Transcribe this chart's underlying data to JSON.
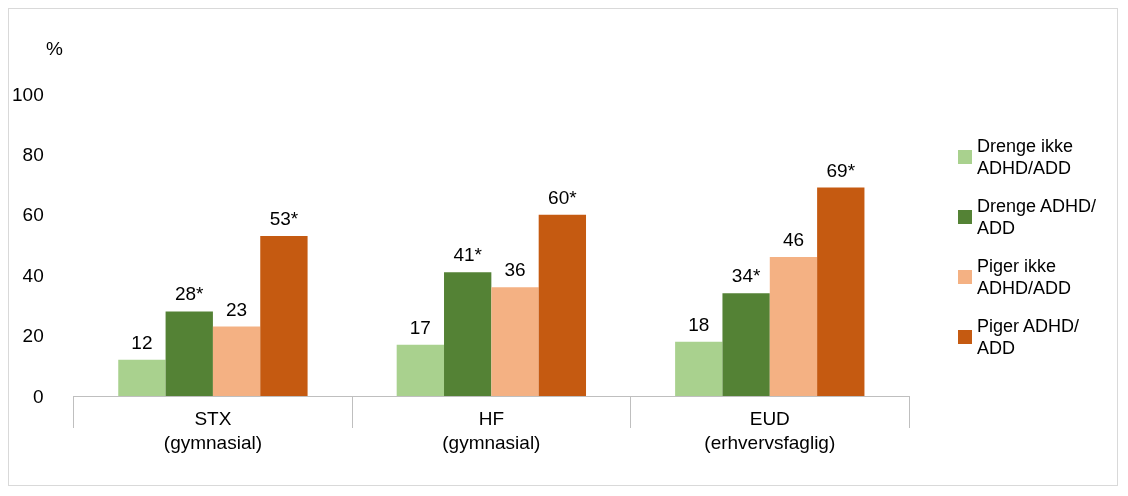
{
  "chart_data": {
    "type": "bar",
    "ylabel": "%",
    "categories": [
      "STX\n(gymnasial)",
      "HF\n(gymnasial)",
      "EUD\n(erhvervsfaglig)"
    ],
    "series": [
      {
        "name": "Drenge ikke ADHD/ADD",
        "color": "#a9d18e",
        "values": [
          12,
          17,
          18
        ],
        "value_labels": [
          "12",
          "17",
          "18"
        ]
      },
      {
        "name": "Drenge ADHD/ADD",
        "color": "#548235",
        "values": [
          28,
          41,
          34
        ],
        "value_labels": [
          "28*",
          "41*",
          "34*"
        ]
      },
      {
        "name": "Piger ikke ADHD/ADD",
        "color": "#f4b183",
        "values": [
          23,
          36,
          46
        ],
        "value_labels": [
          "23",
          "36",
          "46"
        ]
      },
      {
        "name": "Piger ADHD/ADD",
        "color": "#c55a11",
        "values": [
          53,
          60,
          69
        ],
        "value_labels": [
          "53*",
          "60*",
          "69*"
        ]
      }
    ],
    "ylim": [
      0,
      100
    ],
    "yticks": [
      0,
      20,
      40,
      60,
      80,
      100
    ],
    "grid": false,
    "legend": "right"
  }
}
